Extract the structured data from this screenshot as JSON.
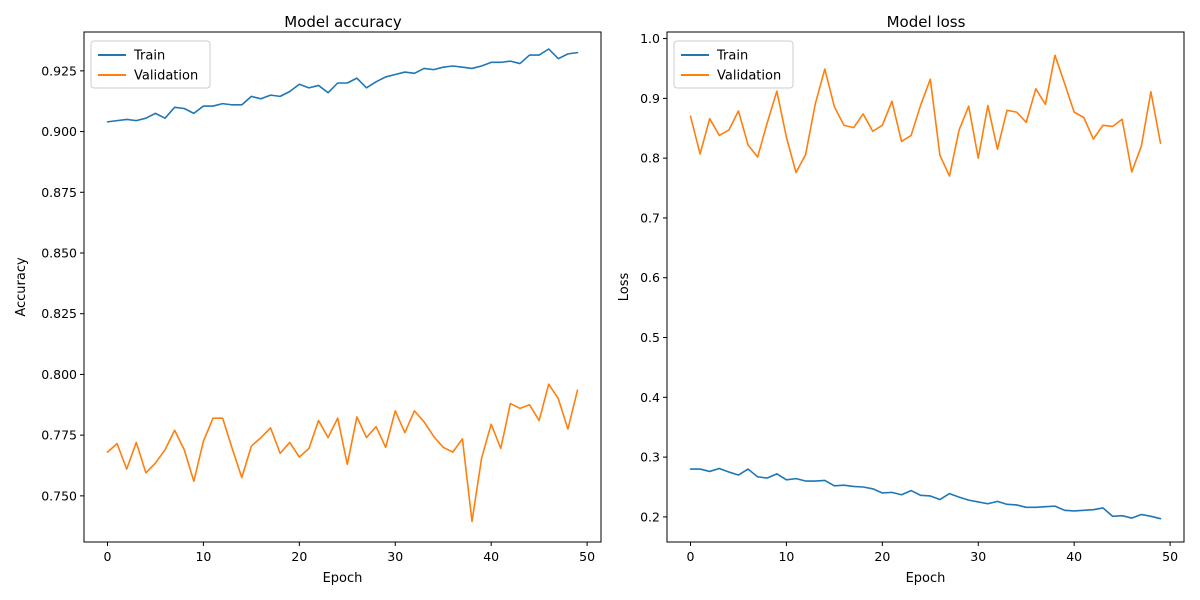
{
  "chart_data": [
    {
      "type": "line",
      "title": "Model accuracy",
      "xlabel": "Epoch",
      "ylabel": "Accuracy",
      "xlim": [
        -2.45,
        51.45
      ],
      "ylim": [
        0.731,
        0.941
      ],
      "xticks": [
        0,
        10,
        20,
        30,
        40,
        50
      ],
      "yticks": [
        0.75,
        0.775,
        0.8,
        0.825,
        0.85,
        0.875,
        0.9,
        0.925
      ],
      "ytick_labels": [
        "0.750",
        "0.775",
        "0.800",
        "0.825",
        "0.850",
        "0.875",
        "0.900",
        "0.925"
      ],
      "legend_position": "upper-left",
      "grid": false,
      "x": [
        0,
        1,
        2,
        3,
        4,
        5,
        6,
        7,
        8,
        9,
        10,
        11,
        12,
        13,
        14,
        15,
        16,
        17,
        18,
        19,
        20,
        21,
        22,
        23,
        24,
        25,
        26,
        27,
        28,
        29,
        30,
        31,
        32,
        33,
        34,
        35,
        36,
        37,
        38,
        39,
        40,
        41,
        42,
        43,
        44,
        45,
        46,
        47,
        48,
        49
      ],
      "series": [
        {
          "name": "Train",
          "color": "#1f77b4",
          "values": [
            0.904,
            0.9045,
            0.905,
            0.9045,
            0.9055,
            0.9075,
            0.9055,
            0.91,
            0.9095,
            0.9075,
            0.9105,
            0.9105,
            0.9115,
            0.911,
            0.911,
            0.9145,
            0.9135,
            0.915,
            0.9145,
            0.9165,
            0.9195,
            0.918,
            0.919,
            0.916,
            0.92,
            0.92,
            0.922,
            0.918,
            0.9205,
            0.9225,
            0.9235,
            0.9245,
            0.924,
            0.926,
            0.9255,
            0.9265,
            0.927,
            0.9265,
            0.926,
            0.927,
            0.9285,
            0.9285,
            0.929,
            0.928,
            0.9315,
            0.9315,
            0.934,
            0.93,
            0.932,
            0.9325
          ]
        },
        {
          "name": "Validation",
          "color": "#ff7f0e",
          "values": [
            0.768,
            0.7715,
            0.761,
            0.772,
            0.7595,
            0.7635,
            0.769,
            0.777,
            0.769,
            0.756,
            0.7725,
            0.782,
            0.782,
            0.7695,
            0.7575,
            0.7705,
            0.774,
            0.778,
            0.7675,
            0.772,
            0.766,
            0.7695,
            0.781,
            0.774,
            0.782,
            0.763,
            0.7825,
            0.774,
            0.7785,
            0.77,
            0.785,
            0.776,
            0.785,
            0.7805,
            0.7745,
            0.77,
            0.768,
            0.7735,
            0.7395,
            0.7655,
            0.7795,
            0.7695,
            0.788,
            0.786,
            0.7875,
            0.781,
            0.796,
            0.79,
            0.7775,
            0.7935
          ]
        }
      ]
    },
    {
      "type": "line",
      "title": "Model loss",
      "xlabel": "Epoch",
      "ylabel": "Loss",
      "xlim": [
        -2.45,
        51.45
      ],
      "ylim": [
        0.158,
        1.011
      ],
      "xticks": [
        0,
        10,
        20,
        30,
        40,
        50
      ],
      "yticks": [
        0.2,
        0.3,
        0.4,
        0.5,
        0.6,
        0.7,
        0.8,
        0.9,
        1.0
      ],
      "ytick_labels": [
        "0.2",
        "0.3",
        "0.4",
        "0.5",
        "0.6",
        "0.7",
        "0.8",
        "0.9",
        "1.0"
      ],
      "legend_position": "upper-left",
      "grid": false,
      "x": [
        0,
        1,
        2,
        3,
        4,
        5,
        6,
        7,
        8,
        9,
        10,
        11,
        12,
        13,
        14,
        15,
        16,
        17,
        18,
        19,
        20,
        21,
        22,
        23,
        24,
        25,
        26,
        27,
        28,
        29,
        30,
        31,
        32,
        33,
        34,
        35,
        36,
        37,
        38,
        39,
        40,
        41,
        42,
        43,
        44,
        45,
        46,
        47,
        48,
        49
      ],
      "series": [
        {
          "name": "Train",
          "color": "#1f77b4",
          "values": [
            0.28,
            0.28,
            0.276,
            0.281,
            0.275,
            0.27,
            0.28,
            0.267,
            0.265,
            0.272,
            0.262,
            0.264,
            0.26,
            0.26,
            0.261,
            0.252,
            0.253,
            0.251,
            0.25,
            0.247,
            0.24,
            0.241,
            0.237,
            0.244,
            0.236,
            0.235,
            0.229,
            0.239,
            0.233,
            0.228,
            0.225,
            0.222,
            0.226,
            0.221,
            0.22,
            0.216,
            0.216,
            0.217,
            0.218,
            0.211,
            0.21,
            0.211,
            0.212,
            0.215,
            0.201,
            0.202,
            0.198,
            0.204,
            0.201,
            0.197
          ]
        },
        {
          "name": "Validation",
          "color": "#ff7f0e",
          "values": [
            0.87,
            0.807,
            0.866,
            0.838,
            0.847,
            0.879,
            0.822,
            0.802,
            0.859,
            0.912,
            0.835,
            0.776,
            0.806,
            0.89,
            0.949,
            0.886,
            0.855,
            0.851,
            0.874,
            0.845,
            0.855,
            0.895,
            0.828,
            0.838,
            0.889,
            0.932,
            0.805,
            0.77,
            0.847,
            0.887,
            0.8,
            0.888,
            0.815,
            0.88,
            0.877,
            0.86,
            0.916,
            0.89,
            0.972,
            0.925,
            0.877,
            0.868,
            0.832,
            0.855,
            0.853,
            0.865,
            0.777,
            0.82,
            0.911,
            0.825
          ]
        }
      ]
    }
  ]
}
